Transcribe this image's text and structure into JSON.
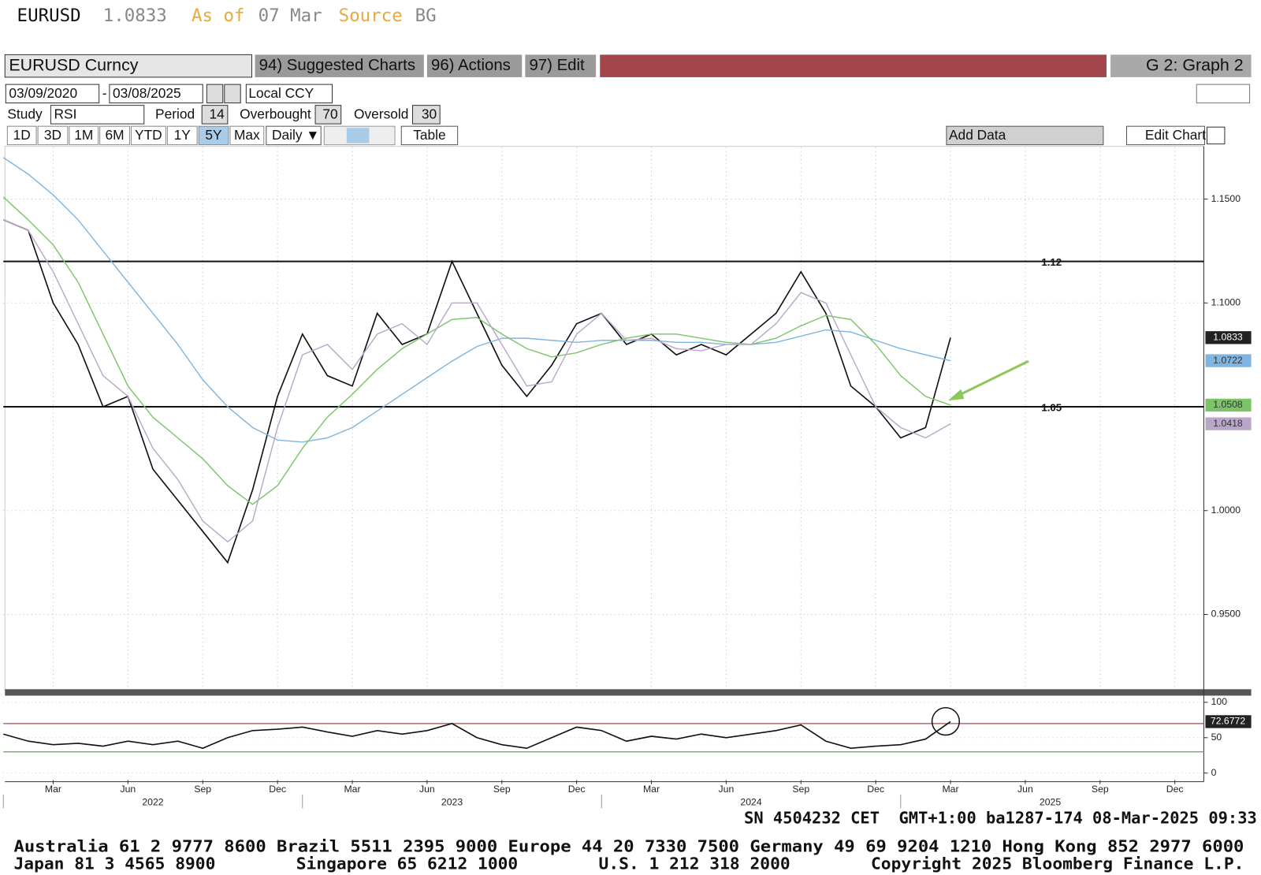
{
  "header": {
    "ticker": "EURUSD",
    "price": "1.0833",
    "as_of_label": "As of",
    "as_of": "07 Mar",
    "source_label": "Source",
    "source": "BG"
  },
  "toolbar": {
    "security": "EURUSD Curncy",
    "suggested": "94) Suggested Charts",
    "actions": "96) Actions",
    "edit": "97) Edit",
    "graph": "G 2: Graph 2",
    "start": "03/09/2020",
    "end": "03/08/2025",
    "currency": "Local CCY",
    "study_label": "Study",
    "study": "RSI",
    "period_label": "Period",
    "period": 14,
    "overbought_label": "Overbought",
    "overbought": 70,
    "oversold_label": "Oversold",
    "oversold": 30,
    "ranges": [
      "1D",
      "3D",
      "1M",
      "6M",
      "YTD",
      "1Y",
      "5Y",
      "Max"
    ],
    "active_range": 6,
    "frequency": "Daily ▼",
    "table": "Table",
    "add_data": "Add Data",
    "edit_chart": "Edit Chart"
  },
  "chart_data": [
    {
      "type": "line",
      "x": [
        "2022-01",
        "2022-02",
        "2022-03",
        "2022-04",
        "2022-05",
        "2022-06",
        "2022-07",
        "2022-08",
        "2022-09",
        "2022-10",
        "2022-11",
        "2022-12",
        "2023-01",
        "2023-02",
        "2023-03",
        "2023-04",
        "2023-05",
        "2023-06",
        "2023-07",
        "2023-08",
        "2023-09",
        "2023-10",
        "2023-11",
        "2023-12",
        "2024-01",
        "2024-02",
        "2024-03",
        "2024-04",
        "2024-05",
        "2024-06",
        "2024-07",
        "2024-08",
        "2024-09",
        "2024-10",
        "2024-11",
        "2024-12",
        "2025-01",
        "2025-02",
        "2025-03"
      ],
      "xlim": [
        "2022-01",
        "2026-01"
      ],
      "ylim": [
        0.914,
        1.175
      ],
      "yticks": [
        {
          "value": 0.95,
          "label": "0.9500"
        },
        {
          "value": 1.0,
          "label": "1.0000"
        },
        {
          "value": 1.1,
          "label": "1.1000"
        },
        {
          "value": 1.15,
          "label": "1.1500"
        }
      ],
      "grid": true,
      "levels": [
        1.12,
        1.05
      ],
      "series": [
        {
          "color": "#111111",
          "last_label": "1.0833",
          "values": [
            1.14,
            1.135,
            1.1,
            1.08,
            1.05,
            1.055,
            1.02,
            1.005,
            0.99,
            0.975,
            1.01,
            1.055,
            1.085,
            1.065,
            1.06,
            1.095,
            1.08,
            1.085,
            1.12,
            1.095,
            1.07,
            1.055,
            1.07,
            1.09,
            1.095,
            1.08,
            1.085,
            1.075,
            1.08,
            1.075,
            1.085,
            1.095,
            1.115,
            1.095,
            1.06,
            1.05,
            1.035,
            1.04,
            1.0833
          ]
        },
        {
          "color": "#7fb5e0",
          "last_label": "1.0722",
          "values": [
            1.17,
            1.162,
            1.152,
            1.14,
            1.125,
            1.11,
            1.095,
            1.08,
            1.063,
            1.05,
            1.04,
            1.034,
            1.033,
            1.035,
            1.04,
            1.048,
            1.056,
            1.064,
            1.072,
            1.079,
            1.083,
            1.083,
            1.082,
            1.081,
            1.082,
            1.082,
            1.082,
            1.081,
            1.081,
            1.08,
            1.08,
            1.081,
            1.084,
            1.087,
            1.086,
            1.082,
            1.078,
            1.075,
            1.0722
          ]
        },
        {
          "color": "#7cc46a",
          "last_label": "1.0508",
          "values": [
            1.151,
            1.14,
            1.128,
            1.11,
            1.085,
            1.06,
            1.045,
            1.035,
            1.025,
            1.012,
            1.003,
            1.012,
            1.03,
            1.045,
            1.056,
            1.068,
            1.078,
            1.085,
            1.092,
            1.093,
            1.085,
            1.078,
            1.074,
            1.076,
            1.08,
            1.083,
            1.085,
            1.085,
            1.083,
            1.081,
            1.08,
            1.083,
            1.089,
            1.094,
            1.092,
            1.08,
            1.065,
            1.055,
            1.0508
          ]
        },
        {
          "color": "#b9a6c9",
          "last_label": "1.0418",
          "values": [
            1.14,
            1.135,
            1.115,
            1.09,
            1.065,
            1.055,
            1.03,
            1.015,
            0.995,
            0.985,
            0.995,
            1.04,
            1.075,
            1.08,
            1.068,
            1.085,
            1.09,
            1.08,
            1.1,
            1.1,
            1.08,
            1.06,
            1.062,
            1.085,
            1.095,
            1.082,
            1.083,
            1.078,
            1.077,
            1.08,
            1.08,
            1.09,
            1.105,
            1.1,
            1.075,
            1.05,
            1.04,
            1.035,
            1.0418
          ]
        }
      ]
    },
    {
      "type": "line",
      "ylim": [
        -10,
        106
      ],
      "yticks": [
        0,
        50,
        100
      ],
      "xticks": [
        {
          "value": "2022-03",
          "label": "Mar"
        },
        {
          "value": "2022-06",
          "label": "Jun"
        },
        {
          "value": "2022-09",
          "label": "Sep"
        },
        {
          "value": "2022-12",
          "label": "Dec"
        },
        {
          "value": "2023-03",
          "label": "Mar"
        },
        {
          "value": "2023-06",
          "label": "Jun"
        },
        {
          "value": "2023-09",
          "label": "Sep"
        },
        {
          "value": "2023-12",
          "label": "Dec"
        },
        {
          "value": "2024-03",
          "label": "Mar"
        },
        {
          "value": "2024-06",
          "label": "Jun"
        },
        {
          "value": "2024-09",
          "label": "Sep"
        },
        {
          "value": "2024-12",
          "label": "Dec"
        },
        {
          "value": "2025-03",
          "label": "Mar"
        },
        {
          "value": "2025-06",
          "label": "Jun"
        },
        {
          "value": "2025-09",
          "label": "Sep"
        },
        {
          "value": "2025-12",
          "label": "Dec"
        }
      ],
      "years": [
        "2022",
        "2023",
        "2024",
        "2025"
      ],
      "series": [
        {
          "color": "#111111",
          "last_label": "72.6772",
          "values": [
            55,
            45,
            40,
            42,
            38,
            45,
            40,
            45,
            35,
            50,
            60,
            62,
            65,
            58,
            52,
            60,
            55,
            60,
            70,
            50,
            40,
            35,
            50,
            65,
            60,
            45,
            52,
            48,
            55,
            50,
            55,
            60,
            68,
            45,
            35,
            38,
            40,
            48,
            72.6772
          ]
        }
      ]
    }
  ],
  "footer": {
    "status": "SN 4504232 CET  GMT+1:00 ba1287-174 08-Mar-2025 09:33",
    "contacts": [
      "Australia 61 2 9777 8600 Brazil 5511 2395 9000 Europe 44 20 7330 7500 Germany 49 69 9204 1210 Hong Kong 852 2977 6000",
      "Japan 81 3 4565 8900        Singapore 65 6212 1000        U.S. 1 212 318 2000        Copyright 2025 Bloomberg Finance L.P."
    ]
  }
}
